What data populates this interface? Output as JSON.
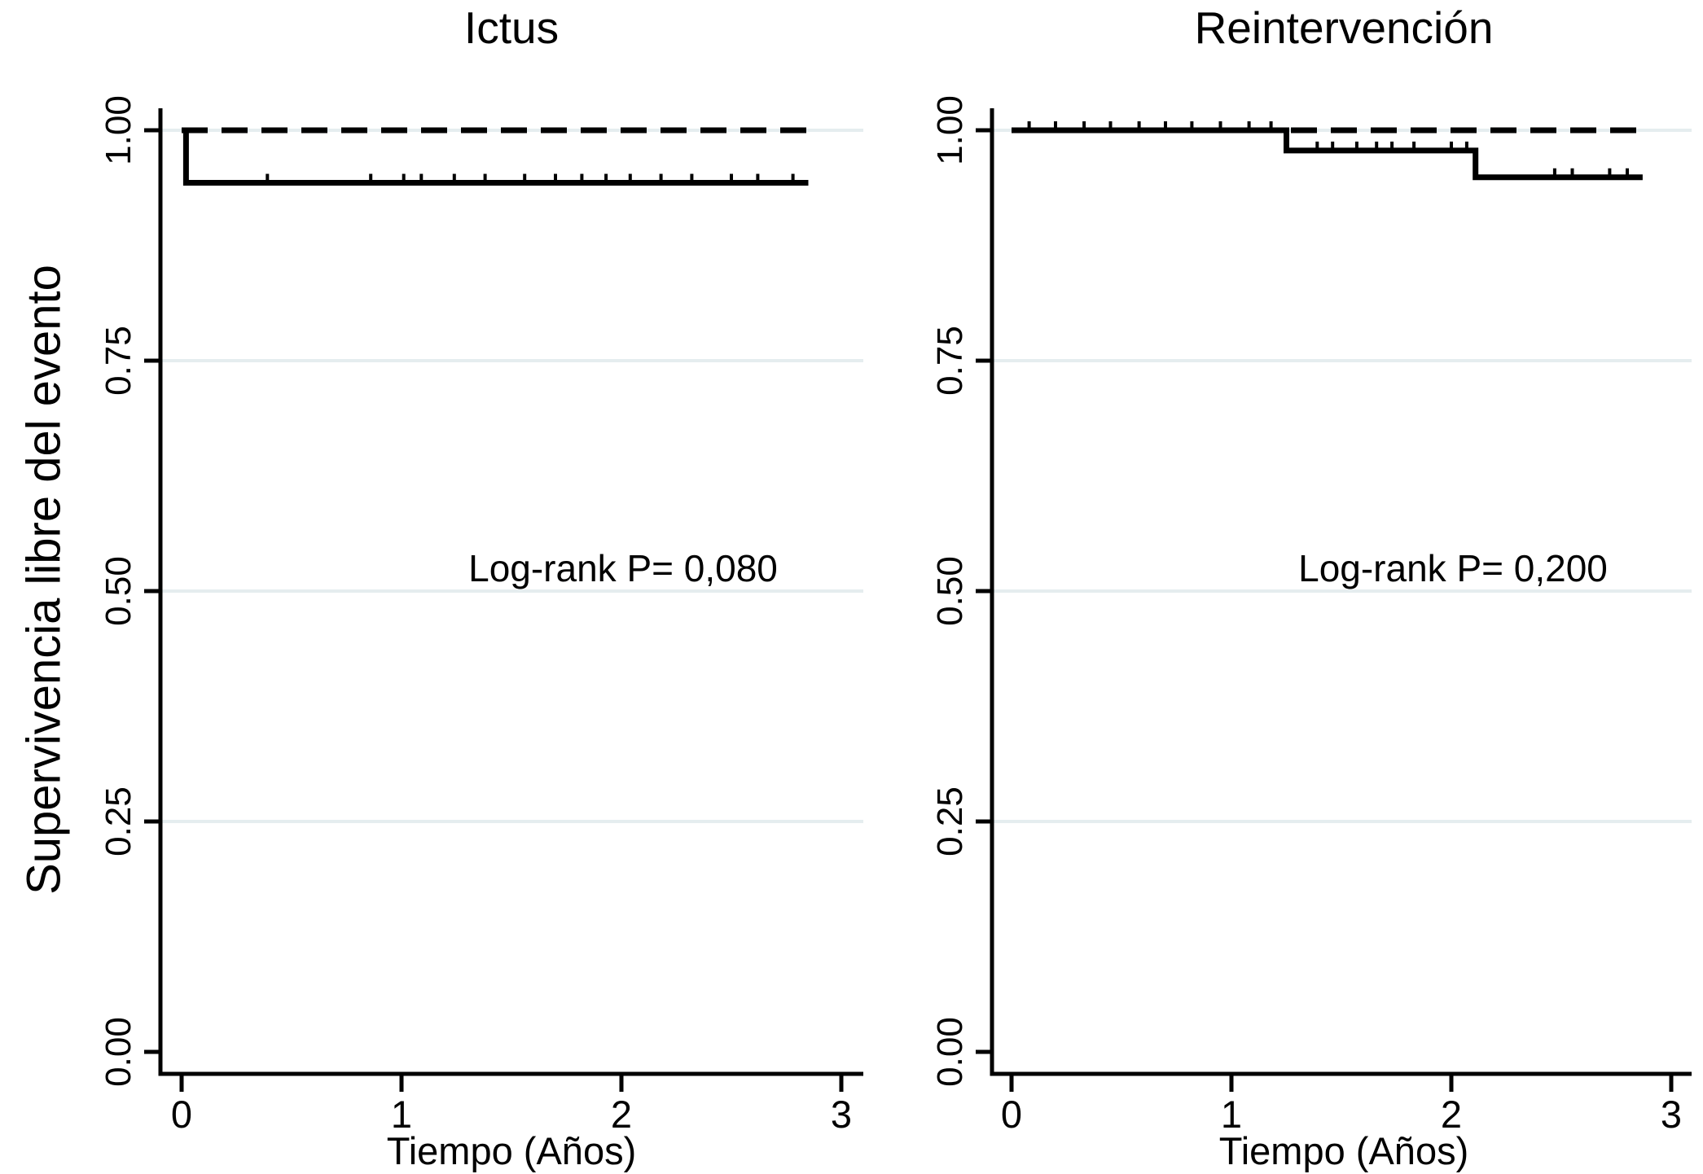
{
  "figure": {
    "ylabel": "Supervivencia libre del evento",
    "background_color": "#ffffff",
    "line_color": "#000000",
    "grid_color": "#e5edef"
  },
  "chart_data": [
    {
      "type": "line",
      "subtype": "kaplan-meier-step",
      "title": "Ictus",
      "xlabel": "Tiempo (Años)",
      "ylabel": "Supervivencia libre del evento",
      "xlim": [
        0,
        3.1
      ],
      "ylim": [
        0,
        1
      ],
      "xticks": {
        "values": [
          0,
          1,
          2,
          3
        ],
        "labels": [
          "0",
          "1",
          "2",
          "3"
        ]
      },
      "yticks": {
        "values": [
          0,
          0.25,
          0.5,
          0.75,
          1
        ],
        "labels": [
          "0.00",
          "0.25",
          "0.50",
          "0.75",
          "1.00"
        ]
      },
      "grid": {
        "show": true,
        "at": [
          0.25,
          0.5,
          0.75,
          1
        ]
      },
      "legend": "none",
      "annotation": {
        "text": "Log-rank P= 0,080",
        "x": 2,
        "y": 0.52
      },
      "series": [
        {
          "name": "grupo-linea-discontinua",
          "style": "dashed",
          "points": [
            [
              0,
              1.0
            ],
            [
              2.85,
              1.0
            ]
          ],
          "censors": []
        },
        {
          "name": "grupo-linea-continua",
          "style": "solid",
          "points": [
            [
              0,
              1.0
            ],
            [
              0.02,
              1.0
            ],
            [
              0.02,
              0.943
            ],
            [
              2.85,
              0.943
            ]
          ],
          "censors": [
            [
              0.39,
              0.943
            ],
            [
              0.86,
              0.943
            ],
            [
              1.01,
              0.943
            ],
            [
              1.09,
              0.943
            ],
            [
              1.24,
              0.943
            ],
            [
              1.38,
              0.943
            ],
            [
              1.56,
              0.943
            ],
            [
              1.7,
              0.943
            ],
            [
              1.82,
              0.943
            ],
            [
              1.93,
              0.943
            ],
            [
              2.04,
              0.943
            ],
            [
              2.18,
              0.943
            ],
            [
              2.32,
              0.943
            ],
            [
              2.5,
              0.943
            ],
            [
              2.62,
              0.943
            ],
            [
              2.78,
              0.943
            ]
          ]
        }
      ]
    },
    {
      "type": "line",
      "subtype": "kaplan-meier-step",
      "title": "Reintervención",
      "xlabel": "Tiempo (Años)",
      "ylabel": "Supervivencia libre del evento",
      "xlim": [
        0,
        3.1
      ],
      "ylim": [
        0,
        1
      ],
      "xticks": {
        "values": [
          0,
          1,
          2,
          3
        ],
        "labels": [
          "0",
          "1",
          "2",
          "3"
        ]
      },
      "yticks": {
        "values": [
          0,
          0.25,
          0.5,
          0.75,
          1
        ],
        "labels": [
          "0.00",
          "0.25",
          "0.50",
          "0.75",
          "1.00"
        ]
      },
      "grid": {
        "show": true,
        "at": [
          0.25,
          0.5,
          0.75,
          1
        ]
      },
      "legend": "none",
      "annotation": {
        "text": "Log-rank P= 0,200",
        "x": 2,
        "y": 0.52
      },
      "series": [
        {
          "name": "grupo-linea-discontinua",
          "style": "dashed",
          "points": [
            [
              0,
              1.0
            ],
            [
              2.9,
              1.0
            ]
          ],
          "censors": []
        },
        {
          "name": "grupo-linea-continua",
          "style": "solid",
          "points": [
            [
              0,
              1.0
            ],
            [
              1.25,
              1.0
            ],
            [
              1.25,
              0.978
            ],
            [
              2.11,
              0.978
            ],
            [
              2.11,
              0.949
            ],
            [
              2.87,
              0.949
            ]
          ],
          "censors": [
            [
              0.08,
              1.0
            ],
            [
              0.2,
              1.0
            ],
            [
              0.33,
              1.0
            ],
            [
              0.45,
              1.0
            ],
            [
              0.58,
              1.0
            ],
            [
              0.7,
              1.0
            ],
            [
              0.82,
              1.0
            ],
            [
              0.95,
              1.0
            ],
            [
              1.08,
              1.0
            ],
            [
              1.18,
              1.0
            ],
            [
              1.39,
              0.978
            ],
            [
              1.46,
              0.978
            ],
            [
              1.57,
              0.978
            ],
            [
              1.66,
              0.978
            ],
            [
              1.73,
              0.978
            ],
            [
              1.83,
              0.978
            ],
            [
              2.0,
              0.978
            ],
            [
              2.07,
              0.978
            ],
            [
              2.47,
              0.949
            ],
            [
              2.55,
              0.949
            ],
            [
              2.72,
              0.949
            ],
            [
              2.8,
              0.949
            ]
          ]
        }
      ]
    }
  ]
}
